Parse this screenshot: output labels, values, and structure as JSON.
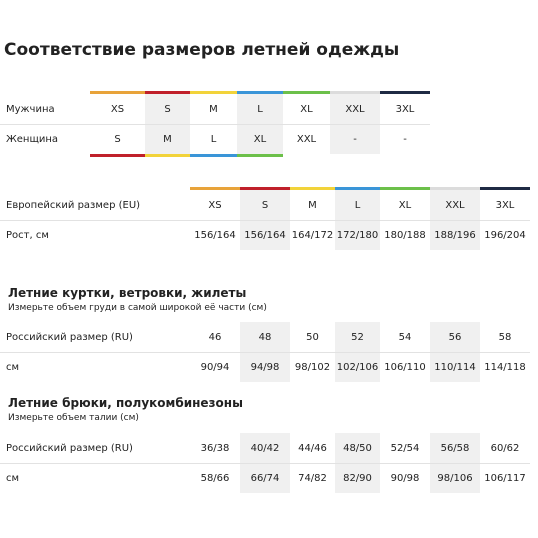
{
  "title": "Соответствие размеров летней одежды",
  "gender_table": {
    "rows": [
      [
        "Мужчина",
        "XS",
        "S",
        "M",
        "L",
        "XL",
        "XXL",
        "3XL"
      ],
      [
        "Женщина",
        "S",
        "M",
        "L",
        "XL",
        "XXL",
        "-",
        "-"
      ]
    ]
  },
  "height_table": {
    "rows": [
      [
        "Европейский размер (EU)",
        "XS",
        "S",
        "M",
        "L",
        "XL",
        "XXL",
        "3XL"
      ],
      [
        "Рост, см",
        "156/164",
        "156/164",
        "164/172",
        "172/180",
        "180/188",
        "188/196",
        "196/204"
      ]
    ]
  },
  "jackets": {
    "heading": "Летние куртки, ветровки, жилеты",
    "note": "Измерьте объем груди в самой широкой её части (см)",
    "rows": [
      [
        "Российский размер (RU)",
        "46",
        "48",
        "50",
        "52",
        "54",
        "56",
        "58"
      ],
      [
        "см",
        "90/94",
        "94/98",
        "98/102",
        "102/106",
        "106/110",
        "110/114",
        "114/118"
      ]
    ]
  },
  "trousers": {
    "heading": "Летние брюки, полукомбинезоны",
    "note": "Измерьте объем талии (см)",
    "rows": [
      [
        "Российский размер (RU)",
        "36/38",
        "40/42",
        "44/46",
        "48/50",
        "52/54",
        "56/58",
        "60/62"
      ],
      [
        "см",
        "58/66",
        "66/74",
        "74/82",
        "82/90",
        "90/98",
        "98/106",
        "106/117"
      ]
    ]
  }
}
